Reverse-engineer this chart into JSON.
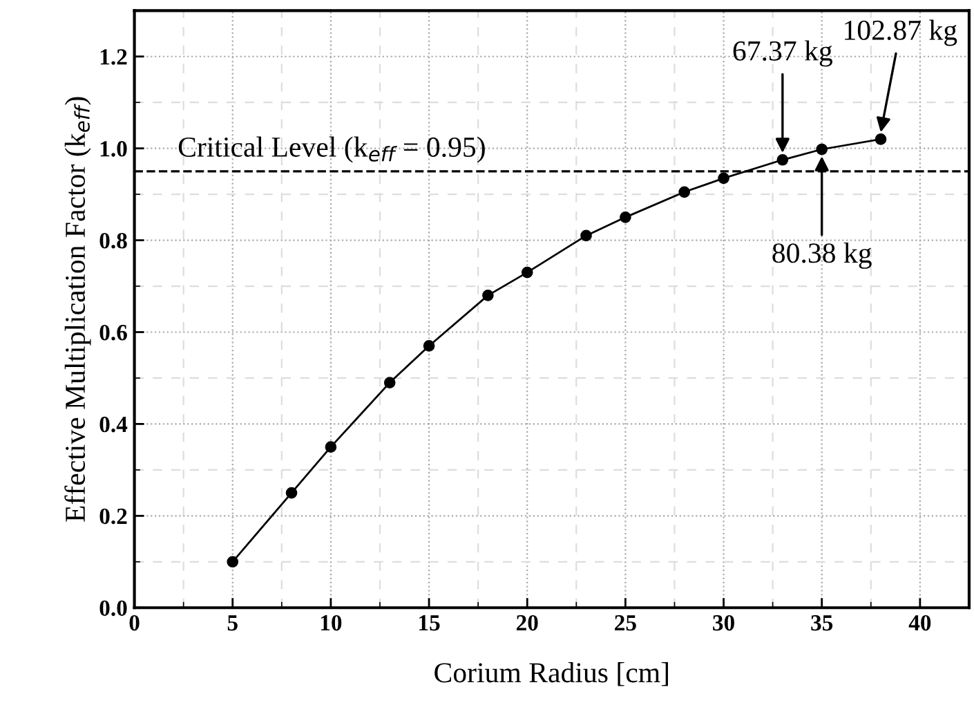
{
  "chart_data": {
    "type": "line",
    "xlabel": "Corium Radius [cm]",
    "ylabel": "Effective Multiplication Factor (k$_{eff}$)",
    "x": [
      5,
      8,
      10,
      13,
      15,
      18,
      20,
      23,
      25,
      28,
      30,
      33,
      35,
      38
    ],
    "series": [
      {
        "color": "#000000",
        "values": [
          0.1,
          0.25,
          0.35,
          0.49,
          0.57,
          0.68,
          0.73,
          0.81,
          0.85,
          0.905,
          0.935,
          0.975,
          0.998,
          1.02
        ]
      }
    ],
    "marker": "circle",
    "line_style": "solid",
    "grid": true,
    "xlim": [
      0,
      42.5
    ],
    "xticks": [
      0,
      5,
      10,
      15,
      20,
      25,
      30,
      35,
      40
    ],
    "ylim": [
      0,
      1.3
    ],
    "yticks": [
      {
        "value": 0,
        "label": "0.0"
      },
      0.2,
      0.4,
      0.6,
      0.8,
      {
        "value": 1,
        "label": "1.0"
      },
      1.2
    ],
    "ref_lines": [
      {
        "axis": "y",
        "value": 0.95,
        "label": "Critical Level (k$_{eff}$ = 0.95)",
        "color": "#000000",
        "line_style": "dashed"
      }
    ],
    "annotations": [
      {
        "text": "67.37 kg",
        "x": 33,
        "y": 0.975
      },
      {
        "text": "80.38 kg",
        "x": 35,
        "y": 0.998
      },
      {
        "text": "102.87 kg",
        "x": 38,
        "y": 1.02
      }
    ]
  }
}
